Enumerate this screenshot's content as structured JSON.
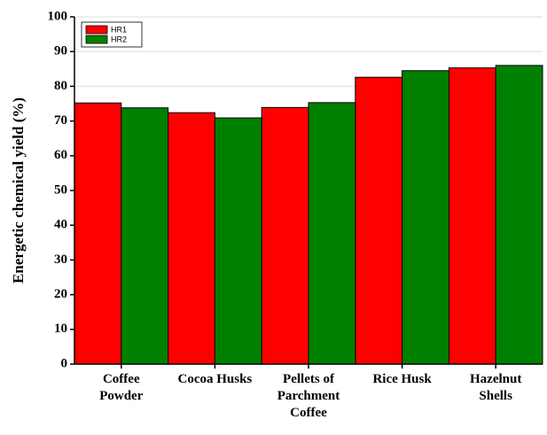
{
  "chart_data": {
    "type": "bar",
    "y_label": "Energetic chemical yield (%)",
    "categories": [
      "Coffee Powder",
      "Cocoa Husks",
      "Pellets of Parchment Coffee",
      "Rice Husk",
      "Hazelnut Shells"
    ],
    "series": [
      {
        "name": "HR1",
        "color": "#ff0000",
        "values": [
          75.2,
          72.4,
          73.9,
          82.6,
          85.3
        ]
      },
      {
        "name": "HR2",
        "color": "#008000",
        "values": [
          73.8,
          70.9,
          75.3,
          84.5,
          86.0
        ]
      }
    ],
    "ylim": [
      0,
      100
    ],
    "yticks": [
      0,
      10,
      20,
      30,
      40,
      50,
      60,
      70,
      80,
      90,
      100
    ],
    "grid": true,
    "legend": "top-left"
  }
}
